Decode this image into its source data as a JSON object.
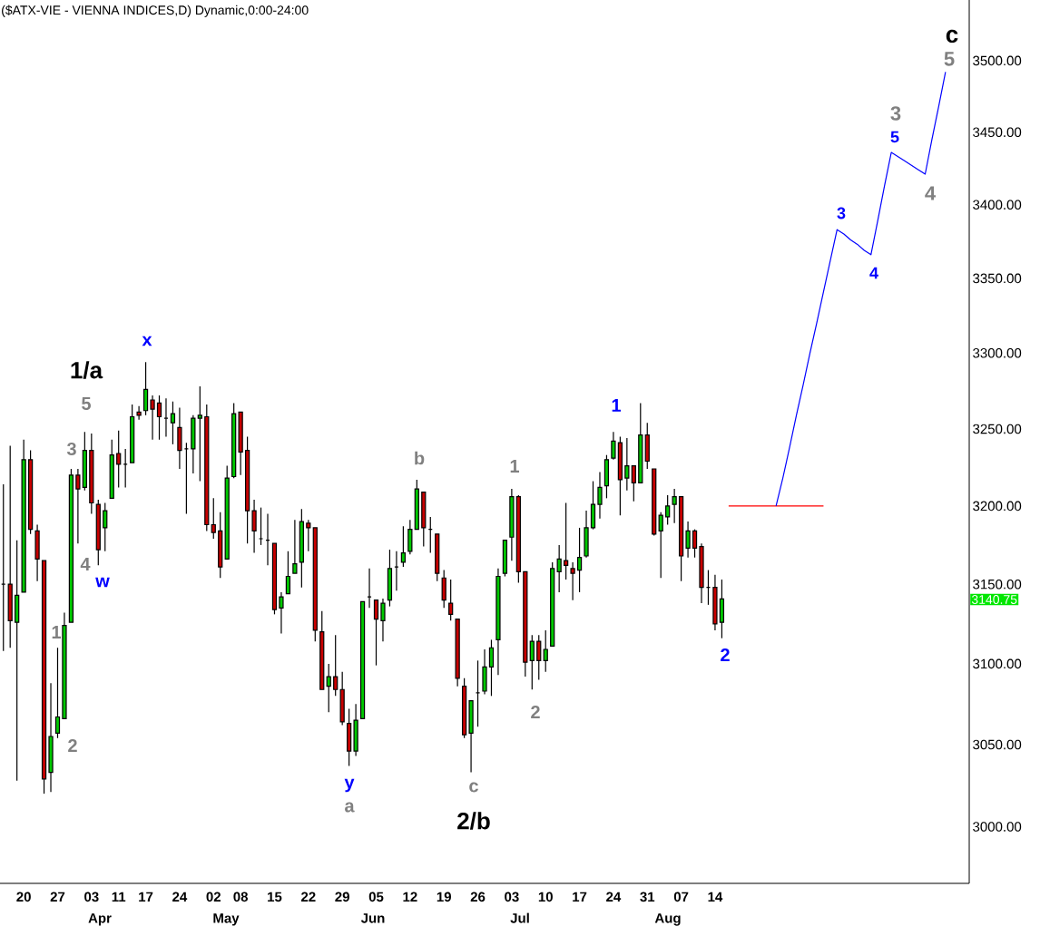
{
  "chart_data": {
    "type": "candlestick",
    "title": "($ATX-VIE - VIENNA INDICES,D) Dynamic,0:00-24:00",
    "categories": [
      null,
      null,
      null,
      "20",
      null,
      null,
      null,
      null,
      "27",
      null,
      null,
      null,
      null,
      "03",
      null,
      null,
      null,
      "11",
      null,
      null,
      null,
      "17",
      null,
      null,
      null,
      null,
      "24",
      null,
      null,
      null,
      null,
      "02",
      null,
      null,
      null,
      "08",
      null,
      null,
      null,
      null,
      "15",
      null,
      null,
      null,
      null,
      "22",
      null,
      null,
      null,
      null,
      "29",
      null,
      null,
      null,
      null,
      "05",
      null,
      null,
      null,
      null,
      "12",
      null,
      null,
      null,
      null,
      "19",
      null,
      null,
      null,
      null,
      "26",
      null,
      null,
      null,
      null,
      "03",
      null,
      null,
      null,
      null,
      "10",
      null,
      null,
      null,
      null,
      "17",
      null,
      null,
      null,
      null,
      "24",
      null,
      null,
      null,
      null,
      "31",
      null,
      null,
      null,
      null,
      "07",
      null,
      null,
      null,
      null,
      "14",
      null,
      null,
      null,
      null,
      null,
      null,
      null,
      null,
      null,
      null,
      null,
      null,
      null,
      null,
      null,
      null,
      null,
      null,
      null,
      null,
      null,
      null,
      null,
      null,
      null,
      null,
      null,
      null,
      null,
      null,
      null,
      null,
      null,
      null,
      null,
      null,
      null
    ],
    "ohlc": [
      [
        3150,
        3214,
        3108,
        3150
      ],
      [
        3150,
        3239,
        3110,
        3127
      ],
      [
        3126,
        3178,
        3028,
        3143
      ],
      [
        3145,
        3243,
        3145,
        3230
      ],
      [
        3230,
        3236,
        3182,
        3185
      ],
      [
        3184,
        3188,
        3152,
        3166
      ],
      [
        3165,
        3165,
        3020,
        3029
      ],
      [
        3033,
        3088,
        3021,
        3055
      ],
      [
        3057,
        3110,
        3054,
        3067
      ],
      [
        3066,
        3132,
        3066,
        3124
      ],
      [
        3126,
        3224,
        3126,
        3220
      ],
      [
        3220,
        3224,
        3176,
        3211
      ],
      [
        3212,
        3248,
        3210,
        3236
      ],
      [
        3236,
        3247,
        3195,
        3202
      ],
      [
        3201,
        3204,
        3162,
        3172
      ],
      [
        3186,
        3202,
        3171,
        3197
      ],
      [
        3205,
        3243,
        3205,
        3233
      ],
      [
        3234,
        3249,
        3212,
        3227
      ],
      [
        3227,
        3237,
        3212,
        3227
      ],
      [
        3228,
        3266,
        3228,
        3258
      ],
      [
        3261,
        3265,
        3256,
        3259
      ],
      [
        3262,
        3294,
        3259,
        3276
      ],
      [
        3269,
        3272,
        3243,
        3263
      ],
      [
        3267,
        3272,
        3243,
        3258
      ],
      [
        3257,
        3270,
        3245,
        3257
      ],
      [
        3254,
        3268,
        3240,
        3260
      ],
      [
        3251,
        3264,
        3224,
        3236
      ],
      [
        3237,
        3241,
        3195,
        3237
      ],
      [
        3237,
        3259,
        3221,
        3257
      ],
      [
        3257,
        3278,
        3216,
        3259
      ],
      [
        3258,
        3266,
        3184,
        3188
      ],
      [
        3188,
        3205,
        3179,
        3183
      ],
      [
        3184,
        3196,
        3154,
        3161
      ],
      [
        3166,
        3226,
        3166,
        3218
      ],
      [
        3219,
        3267,
        3218,
        3260
      ],
      [
        3261,
        3261,
        3220,
        3235
      ],
      [
        3236,
        3245,
        3176,
        3197
      ],
      [
        3197,
        3204,
        3170,
        3184
      ],
      [
        3179,
        3199,
        3175,
        3179
      ],
      [
        3178,
        3195,
        3162,
        3178
      ],
      [
        3176,
        3176,
        3131,
        3134
      ],
      [
        3135,
        3145,
        3119,
        3142
      ],
      [
        3144,
        3171,
        3144,
        3155
      ],
      [
        3157,
        3191,
        3157,
        3163
      ],
      [
        3164,
        3198,
        3148,
        3190
      ],
      [
        3189,
        3191,
        3171,
        3186
      ],
      [
        3186,
        3186,
        3114,
        3121
      ],
      [
        3120,
        3133,
        3084,
        3084
      ],
      [
        3086,
        3100,
        3070,
        3092
      ],
      [
        3092,
        3118,
        3080,
        3084
      ],
      [
        3084,
        3095,
        3062,
        3064
      ],
      [
        3063,
        3072,
        3037,
        3046
      ],
      [
        3046,
        3075,
        3043,
        3065
      ],
      [
        3066,
        3139,
        3066,
        3139
      ],
      [
        3142,
        3160,
        3135,
        3142
      ],
      [
        3140,
        3140,
        3099,
        3128
      ],
      [
        3127,
        3141,
        3114,
        3138
      ],
      [
        3140,
        3172,
        3136,
        3160
      ],
      [
        3161,
        3171,
        3146,
        3161
      ],
      [
        3164,
        3187,
        3161,
        3170
      ],
      [
        3171,
        3191,
        3169,
        3185
      ],
      [
        3185,
        3217,
        3185,
        3211
      ],
      [
        3209,
        3209,
        3174,
        3186
      ],
      [
        3185,
        3193,
        3170,
        3185
      ],
      [
        3182,
        3182,
        3152,
        3157
      ],
      [
        3154,
        3159,
        3135,
        3140
      ],
      [
        3138,
        3153,
        3127,
        3131
      ],
      [
        3128,
        3128,
        3086,
        3091
      ],
      [
        3086,
        3091,
        3054,
        3056
      ],
      [
        3057,
        3077,
        3033,
        3077
      ],
      [
        3082,
        3102,
        3061,
        3082
      ],
      [
        3083,
        3109,
        3081,
        3098
      ],
      [
        3098,
        3115,
        3080,
        3110
      ],
      [
        3115,
        3160,
        3093,
        3155
      ],
      [
        3157,
        3178,
        3155,
        3178
      ],
      [
        3180,
        3211,
        3165,
        3206
      ],
      [
        3206,
        3207,
        3151,
        3158
      ],
      [
        3158,
        3158,
        3092,
        3101
      ],
      [
        3102,
        3118,
        3084,
        3114
      ],
      [
        3114,
        3118,
        3090,
        3102
      ],
      [
        3102,
        3121,
        3095,
        3109
      ],
      [
        3111,
        3164,
        3111,
        3160
      ],
      [
        3158,
        3175,
        3145,
        3166
      ],
      [
        3165,
        3202,
        3153,
        3162
      ],
      [
        3160,
        3164,
        3140,
        3157
      ],
      [
        3159,
        3186,
        3145,
        3167
      ],
      [
        3168,
        3197,
        3167,
        3186
      ],
      [
        3186,
        3216,
        3185,
        3201
      ],
      [
        3201,
        3222,
        3192,
        3212
      ],
      [
        3213,
        3233,
        3205,
        3230
      ],
      [
        3231,
        3248,
        3230,
        3242
      ],
      [
        3241,
        3245,
        3194,
        3217
      ],
      [
        3218,
        3244,
        3210,
        3226
      ],
      [
        3226,
        3226,
        3203,
        3215
      ],
      [
        3215,
        3267,
        3215,
        3246
      ],
      [
        3246,
        3254,
        3224,
        3229
      ],
      [
        3224,
        3224,
        3181,
        3182
      ],
      [
        3184,
        3196,
        3154,
        3194
      ],
      [
        3193,
        3207,
        3188,
        3200
      ],
      [
        3201,
        3211,
        3189,
        3206
      ],
      [
        3206,
        3206,
        3152,
        3168
      ],
      [
        3173,
        3190,
        3167,
        3184
      ],
      [
        3184,
        3185,
        3167,
        3173
      ],
      [
        3174,
        3176,
        3138,
        3148
      ],
      [
        3148,
        3159,
        3137,
        3148
      ],
      [
        3148,
        3156,
        3121,
        3125
      ],
      [
        3126,
        3153,
        3116,
        3140.75
      ],
      null,
      null,
      null,
      null,
      null,
      null,
      null,
      null,
      null,
      null,
      null,
      null,
      null,
      null,
      null,
      null,
      null,
      null,
      null,
      null,
      null,
      null,
      null,
      null,
      null,
      null,
      null,
      null,
      null,
      null,
      null,
      null,
      null,
      null,
      null,
      null
    ],
    "colors": [
      "#000000",
      "#c80000",
      "#00c800",
      "#00c800",
      "#c80000",
      "#c80000",
      "#c80000",
      "#00c800",
      "#00c800",
      "#00c800",
      "#00c800",
      "#c80000",
      "#00c800",
      "#c80000",
      "#c80000",
      "#00c800",
      "#00c800",
      "#c80000",
      "#000000",
      "#00c800",
      "#c80000",
      "#00c800",
      "#c80000",
      "#c80000",
      "#000000",
      "#00c800",
      "#c80000",
      "#000000",
      "#00c800",
      "#00c800",
      "#c80000",
      "#c80000",
      "#c80000",
      "#00c800",
      "#00c800",
      "#c80000",
      "#c80000",
      "#c80000",
      "#000000",
      "#000000",
      "#c80000",
      "#00c800",
      "#00c800",
      "#00c800",
      "#00c800",
      "#c80000",
      "#c80000",
      "#c80000",
      "#00c800",
      "#c80000",
      "#c80000",
      "#c80000",
      "#00c800",
      "#00c800",
      "#000000",
      "#c80000",
      "#00c800",
      "#00c800",
      "#000000",
      "#00c800",
      "#00c800",
      "#00c800",
      "#c80000",
      "#000000",
      "#c80000",
      "#c80000",
      "#c80000",
      "#c80000",
      "#c80000",
      "#00c800",
      "#000000",
      "#00c800",
      "#00c800",
      "#00c800",
      "#00c800",
      "#00c800",
      "#c80000",
      "#c80000",
      "#00c800",
      "#c80000",
      "#00c800",
      "#00c800",
      "#00c800",
      "#c80000",
      "#c80000",
      "#00c800",
      "#00c800",
      "#00c800",
      "#00c800",
      "#00c800",
      "#00c800",
      "#c80000",
      "#00c800",
      "#c80000",
      "#00c800",
      "#c80000",
      "#c80000",
      "#00c800",
      "#00c800",
      "#00c800",
      "#c80000",
      "#00c800",
      "#c80000",
      "#c80000",
      "#000000",
      "#c80000",
      "#00c800",
      null,
      null,
      null,
      null,
      null,
      null,
      null,
      null,
      null,
      null,
      null,
      null,
      null,
      null,
      null,
      null,
      null,
      null,
      null,
      null,
      null,
      null,
      null,
      null,
      null,
      null,
      null,
      null,
      null,
      null,
      null,
      null,
      null,
      null,
      null,
      null
    ],
    "series": [
      {
        "type": "line",
        "color": "#ff0000",
        "values": [
          null,
          null,
          null,
          null,
          null,
          null,
          null,
          null,
          null,
          null,
          null,
          null,
          null,
          null,
          null,
          null,
          null,
          null,
          null,
          null,
          null,
          null,
          null,
          null,
          null,
          null,
          null,
          null,
          null,
          null,
          null,
          null,
          null,
          null,
          null,
          null,
          null,
          null,
          null,
          null,
          null,
          null,
          null,
          null,
          null,
          null,
          null,
          null,
          null,
          null,
          null,
          null,
          null,
          null,
          null,
          null,
          null,
          null,
          null,
          null,
          null,
          null,
          null,
          null,
          null,
          null,
          null,
          null,
          null,
          null,
          null,
          null,
          null,
          null,
          null,
          null,
          null,
          null,
          null,
          null,
          null,
          null,
          null,
          null,
          null,
          null,
          null,
          null,
          null,
          null,
          null,
          null,
          null,
          null,
          null,
          null,
          null,
          null,
          null,
          null,
          null,
          null,
          null,
          null,
          null,
          null,
          null,
          3200,
          3200,
          3200,
          3200,
          3200,
          3200,
          3200,
          3200,
          3200,
          3200,
          3200,
          3200,
          3200,
          3200,
          3200,
          null,
          null,
          null,
          null,
          null,
          null,
          null,
          null,
          null,
          null,
          null,
          null,
          null,
          null,
          null,
          null,
          null,
          null,
          null,
          null,
          null
        ]
      },
      {
        "type": "line",
        "color": "#0000ff",
        "values": [
          null,
          null,
          null,
          null,
          null,
          null,
          null,
          null,
          null,
          null,
          null,
          null,
          null,
          null,
          null,
          null,
          null,
          null,
          null,
          null,
          null,
          null,
          null,
          null,
          null,
          null,
          null,
          null,
          null,
          null,
          null,
          null,
          null,
          null,
          null,
          null,
          null,
          null,
          null,
          null,
          null,
          null,
          null,
          null,
          null,
          null,
          null,
          null,
          null,
          null,
          null,
          null,
          null,
          null,
          null,
          null,
          null,
          null,
          null,
          null,
          null,
          null,
          null,
          null,
          null,
          null,
          null,
          null,
          null,
          null,
          null,
          null,
          null,
          null,
          null,
          null,
          null,
          null,
          null,
          null,
          null,
          null,
          null,
          null,
          null,
          null,
          null,
          null,
          null,
          null,
          null,
          null,
          null,
          null,
          null,
          null,
          null,
          null,
          null,
          null,
          null,
          null,
          null,
          null,
          null,
          null,
          null,
          null,
          null,
          null,
          null,
          null,
          null,
          null,
          3200,
          3218,
          3238,
          3259,
          3279,
          3300,
          3320,
          3341,
          3362,
          3383,
          3380,
          3376,
          3373,
          3369,
          3366,
          3389,
          3413,
          3436,
          3433,
          3430,
          3427,
          3424,
          3421,
          3445,
          3468,
          3492,
          null,
          null,
          null
        ]
      }
    ],
    "log": true,
    "ylim": [
      2966,
      3543
    ],
    "yticks": [
      {
        "value": 3000,
        "label": "3000.00"
      },
      {
        "value": 3050,
        "label": "3050.00"
      },
      {
        "value": 3100,
        "label": "3100.00"
      },
      {
        "value": 3150,
        "label": "3150.00"
      },
      {
        "value": 3200,
        "label": "3200.00"
      },
      {
        "value": 3250,
        "label": "3250.00"
      },
      {
        "value": 3300,
        "label": "3300.00"
      },
      {
        "value": 3350,
        "label": "3350.00"
      },
      {
        "value": 3400,
        "label": "3400.00"
      },
      {
        "value": 3450,
        "label": "3450.00"
      },
      {
        "value": 3500,
        "label": "3500.00"
      }
    ],
    "annotations": [
      "1/a",
      "5",
      "3",
      "4",
      "w",
      "1",
      "2",
      "x",
      "y",
      "a",
      "b",
      "c",
      "2/b",
      "1",
      "2",
      "1",
      "2",
      "3",
      "4",
      "5",
      "3",
      "4",
      "5",
      "c",
      "Apr",
      "May",
      "Jun",
      "Jul",
      "Aug",
      "3140.75"
    ]
  }
}
